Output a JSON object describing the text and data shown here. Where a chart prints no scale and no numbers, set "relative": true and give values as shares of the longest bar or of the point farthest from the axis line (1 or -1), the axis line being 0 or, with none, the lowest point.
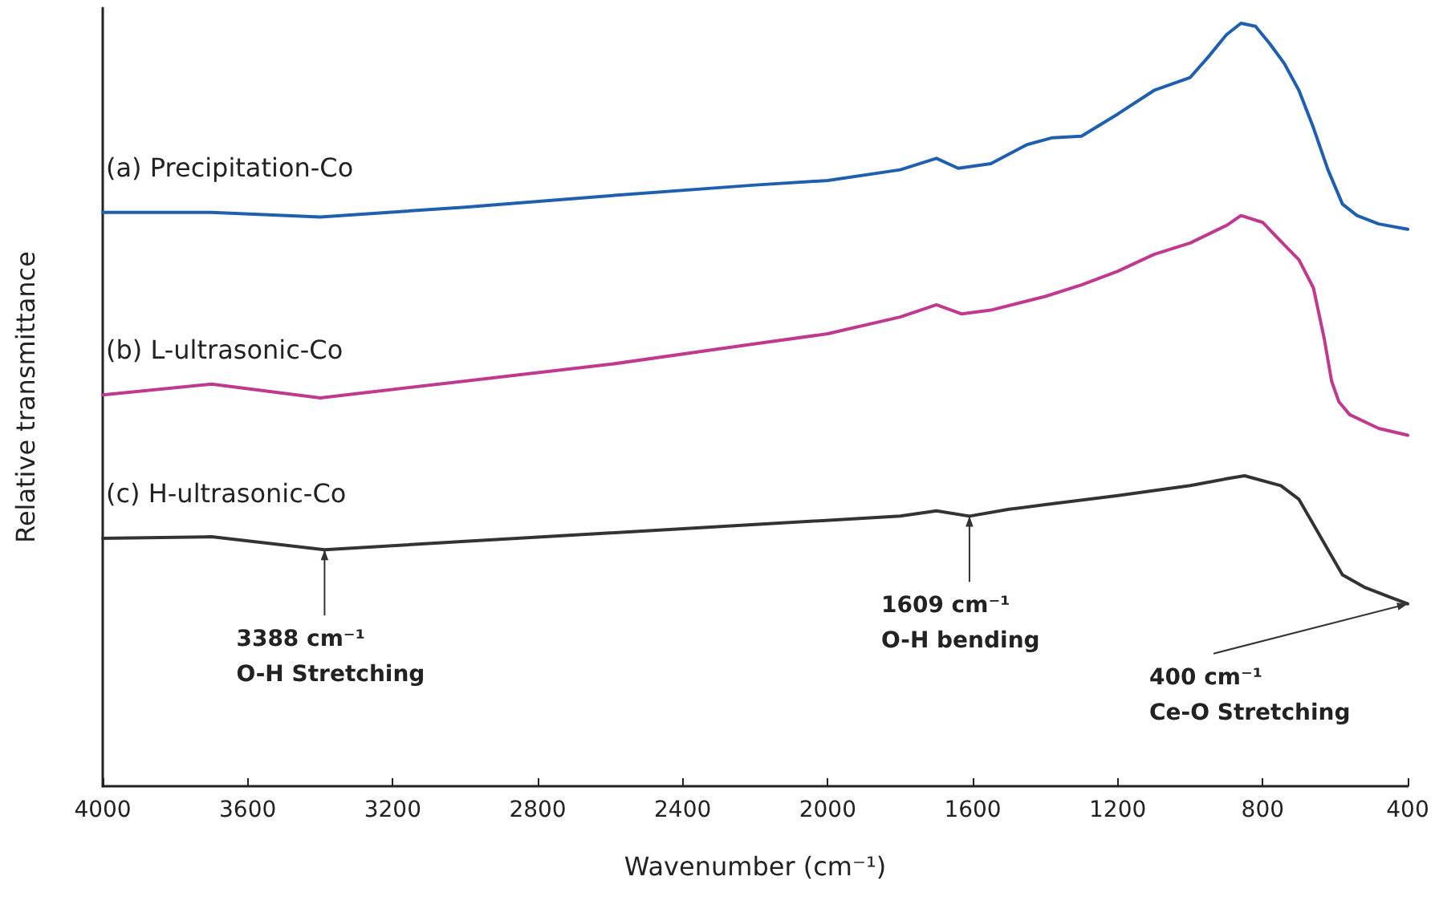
{
  "chart_data": {
    "type": "line",
    "relative": true,
    "xlabel": "Wavenumber (cm⁻¹)",
    "ylabel": "Relative transmittance",
    "xlim": [
      4000,
      400
    ],
    "xticks": [
      4000,
      3600,
      3200,
      2800,
      2400,
      2000,
      1600,
      1200,
      800,
      400
    ],
    "grid": false,
    "legend": false,
    "marker": "none",
    "line_style": "solid",
    "series": [
      {
        "name": "(a) Precipitation-Co",
        "color": "#1f5fb0",
        "x": [
          4000,
          3700,
          3400,
          3000,
          2600,
          2200,
          2000,
          1800,
          1700,
          1640,
          1550,
          1450,
          1380,
          1300,
          1200,
          1100,
          1000,
          950,
          900,
          860,
          820,
          780,
          740,
          700,
          660,
          620,
          580,
          540,
          480,
          400
        ],
        "values": [
          0.752,
          0.752,
          0.746,
          0.759,
          0.774,
          0.788,
          0.794,
          0.808,
          0.823,
          0.81,
          0.816,
          0.841,
          0.85,
          0.852,
          0.881,
          0.912,
          0.929,
          0.956,
          0.985,
          1.0,
          0.996,
          0.973,
          0.947,
          0.912,
          0.863,
          0.808,
          0.763,
          0.748,
          0.737,
          0.73
        ]
      },
      {
        "name": "(b) L-ultrasonic-Co",
        "color": "#c0398f",
        "x": [
          4000,
          3700,
          3400,
          3000,
          2600,
          2200,
          2000,
          1800,
          1700,
          1630,
          1550,
          1400,
          1300,
          1200,
          1100,
          1000,
          900,
          860,
          800,
          760,
          700,
          660,
          630,
          610,
          590,
          560,
          480,
          400
        ],
        "values": [
          0.513,
          0.527,
          0.509,
          0.531,
          0.553,
          0.58,
          0.593,
          0.615,
          0.631,
          0.619,
          0.624,
          0.642,
          0.657,
          0.675,
          0.697,
          0.712,
          0.735,
          0.748,
          0.739,
          0.719,
          0.69,
          0.653,
          0.586,
          0.531,
          0.504,
          0.487,
          0.469,
          0.46
        ]
      },
      {
        "name": "(c) H-ultrasonic-Co",
        "color": "#333333",
        "x": [
          4000,
          3700,
          3388,
          3000,
          2600,
          2200,
          1800,
          1700,
          1609,
          1500,
          1400,
          1200,
          1000,
          900,
          850,
          750,
          700,
          660,
          620,
          580,
          520,
          450,
          400
        ],
        "values": [
          0.325,
          0.327,
          0.31,
          0.321,
          0.332,
          0.343,
          0.354,
          0.361,
          0.354,
          0.363,
          0.369,
          0.381,
          0.394,
          0.403,
          0.407,
          0.394,
          0.376,
          0.343,
          0.31,
          0.277,
          0.261,
          0.248,
          0.239
        ]
      }
    ],
    "annotations": [
      {
        "text": "3388 cm⁻¹\nO-H Stretching",
        "x": 3388,
        "y": 0.31
      },
      {
        "text": "1609 cm⁻¹\nO-H bending",
        "x": 1609,
        "y": 0.354
      },
      {
        "text": "400 cm⁻¹\nCe-O Stretching",
        "x": 400,
        "y": 0.239
      }
    ]
  }
}
